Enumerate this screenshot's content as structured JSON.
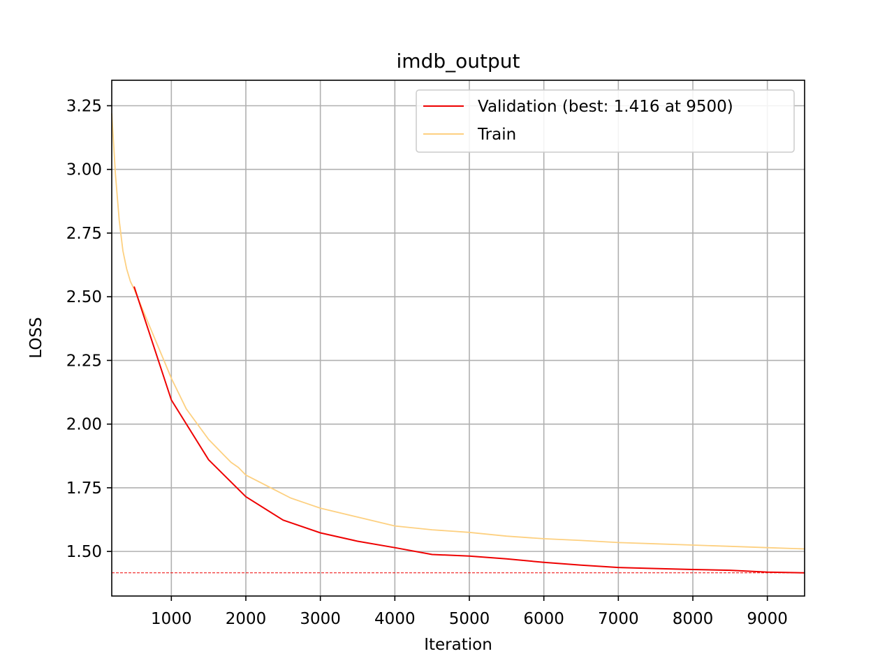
{
  "chart_data": {
    "type": "line",
    "title": "imdb_output",
    "xlabel": "Iteration",
    "ylabel": "LOSS",
    "xlim": [
      200,
      9500
    ],
    "ylim": [
      1.325,
      3.35
    ],
    "xticks": [
      1000,
      2000,
      3000,
      4000,
      5000,
      6000,
      7000,
      8000,
      9000
    ],
    "yticks": [
      1.5,
      1.75,
      2.0,
      2.25,
      2.5,
      2.75,
      3.0,
      3.25
    ],
    "xtick_labels": [
      "1000",
      "2000",
      "3000",
      "4000",
      "5000",
      "6000",
      "7000",
      "8000",
      "9000"
    ],
    "ytick_labels": [
      "1.50",
      "1.75",
      "2.00",
      "2.25",
      "2.50",
      "2.75",
      "3.00",
      "3.25"
    ],
    "grid": true,
    "legend_position": "top-right",
    "legend": [
      "Validation (best: 1.416 at 9500)",
      "Train"
    ],
    "best_line": {
      "y": 1.416,
      "color": "#ee0000",
      "style": "dashed"
    },
    "series": [
      {
        "name": "Validation (best: 1.416 at 9500)",
        "color": "#ee0000",
        "x": [
          500,
          1000,
          1500,
          2000,
          2500,
          3000,
          3500,
          4000,
          4500,
          5000,
          5500,
          6000,
          6500,
          7000,
          7500,
          8000,
          8500,
          9000,
          9500
        ],
        "y": [
          2.54,
          2.095,
          1.86,
          1.715,
          1.623,
          1.573,
          1.54,
          1.515,
          1.488,
          1.482,
          1.471,
          1.457,
          1.446,
          1.437,
          1.433,
          1.429,
          1.426,
          1.419,
          1.416
        ]
      },
      {
        "name": "Train",
        "color": "#fdd080",
        "x": [
          200,
          250,
          300,
          350,
          400,
          450,
          500,
          600,
          700,
          800,
          900,
          1000,
          1100,
          1200,
          1300,
          1400,
          1500,
          1600,
          1700,
          1800,
          1900,
          2000,
          2200,
          2400,
          2600,
          2800,
          3000,
          3500,
          4000,
          4500,
          5000,
          5500,
          6000,
          6500,
          7000,
          7500,
          8000,
          8500,
          9000,
          9500
        ],
        "y": [
          3.22,
          2.98,
          2.8,
          2.68,
          2.61,
          2.56,
          2.53,
          2.46,
          2.39,
          2.32,
          2.25,
          2.18,
          2.12,
          2.06,
          2.02,
          1.98,
          1.94,
          1.91,
          1.88,
          1.85,
          1.83,
          1.8,
          1.77,
          1.74,
          1.71,
          1.69,
          1.67,
          1.635,
          1.6,
          1.585,
          1.575,
          1.56,
          1.55,
          1.543,
          1.535,
          1.53,
          1.525,
          1.52,
          1.515,
          1.51
        ]
      }
    ]
  }
}
